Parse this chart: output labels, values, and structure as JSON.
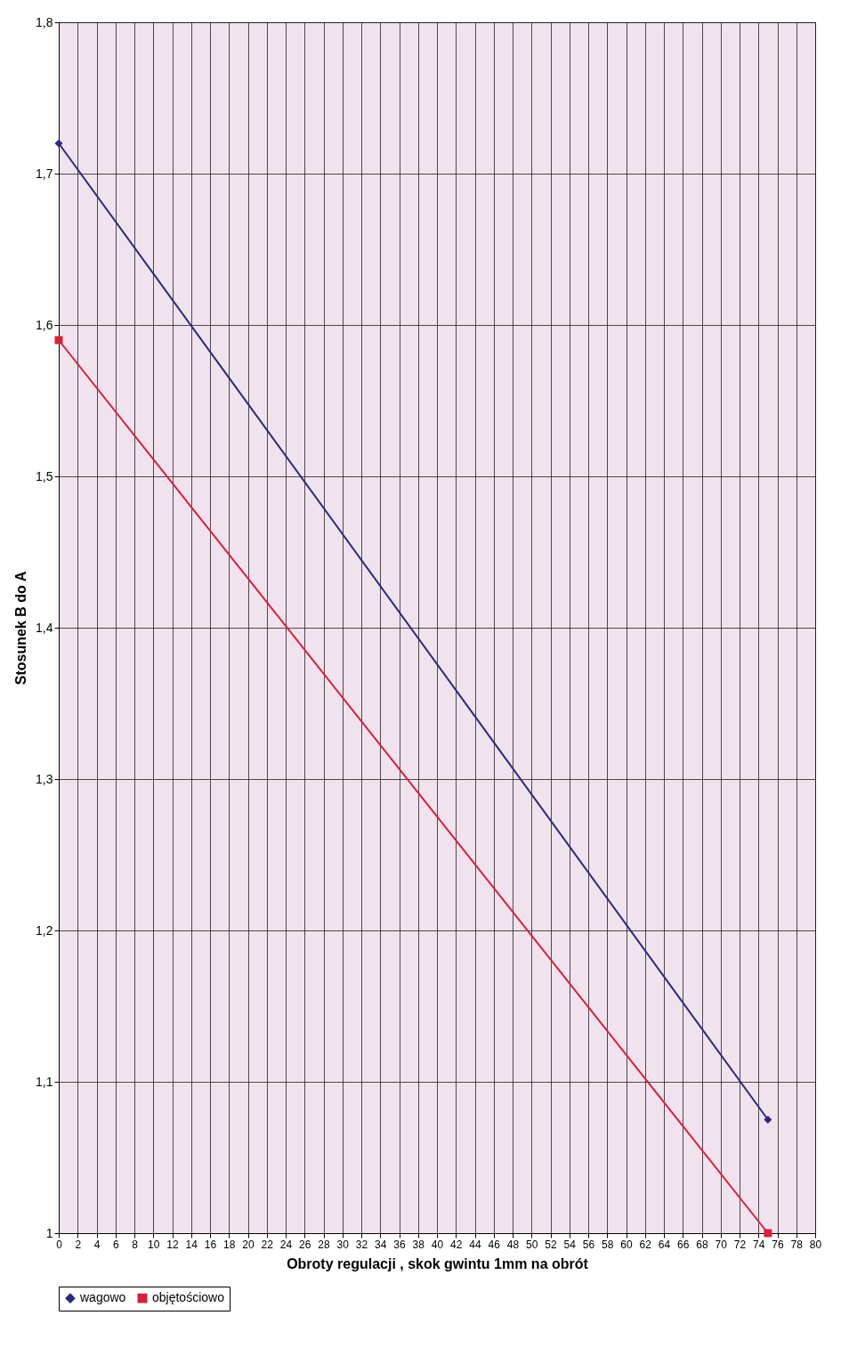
{
  "chart_data": {
    "type": "line",
    "xlabel": "Obroty regulacji , skok gwintu 1mm na obrót",
    "ylabel": "Stosunek B do A",
    "x": [
      0,
      75
    ],
    "series": [
      {
        "name": "wagowo",
        "color": "#2a2a7e",
        "marker": "diamond",
        "values": [
          1.72,
          1.075
        ]
      },
      {
        "name": "objętościowo",
        "color": "#d8203c",
        "marker": "square",
        "values": [
          1.59,
          1.0
        ]
      }
    ],
    "xlim": [
      0,
      80
    ],
    "xticks": [
      0,
      2,
      4,
      6,
      8,
      10,
      12,
      14,
      16,
      18,
      20,
      22,
      24,
      26,
      28,
      30,
      32,
      34,
      36,
      38,
      40,
      42,
      44,
      46,
      48,
      50,
      52,
      54,
      56,
      58,
      60,
      62,
      64,
      66,
      68,
      70,
      72,
      74,
      76,
      78,
      80
    ],
    "ylim": [
      1,
      1.8
    ],
    "yticks": [
      1,
      {
        "value": 1.1,
        "label": "1,1"
      },
      {
        "value": 1.2,
        "label": "1,2"
      },
      {
        "value": 1.3,
        "label": "1,3"
      },
      {
        "value": 1.4,
        "label": "1,4"
      },
      {
        "value": 1.5,
        "label": "1,5"
      },
      {
        "value": 1.6,
        "label": "1,6"
      },
      {
        "value": 1.7,
        "label": "1,7"
      },
      {
        "value": 1.8,
        "label": "1,8"
      }
    ],
    "grid": true,
    "legend": "bottom"
  }
}
